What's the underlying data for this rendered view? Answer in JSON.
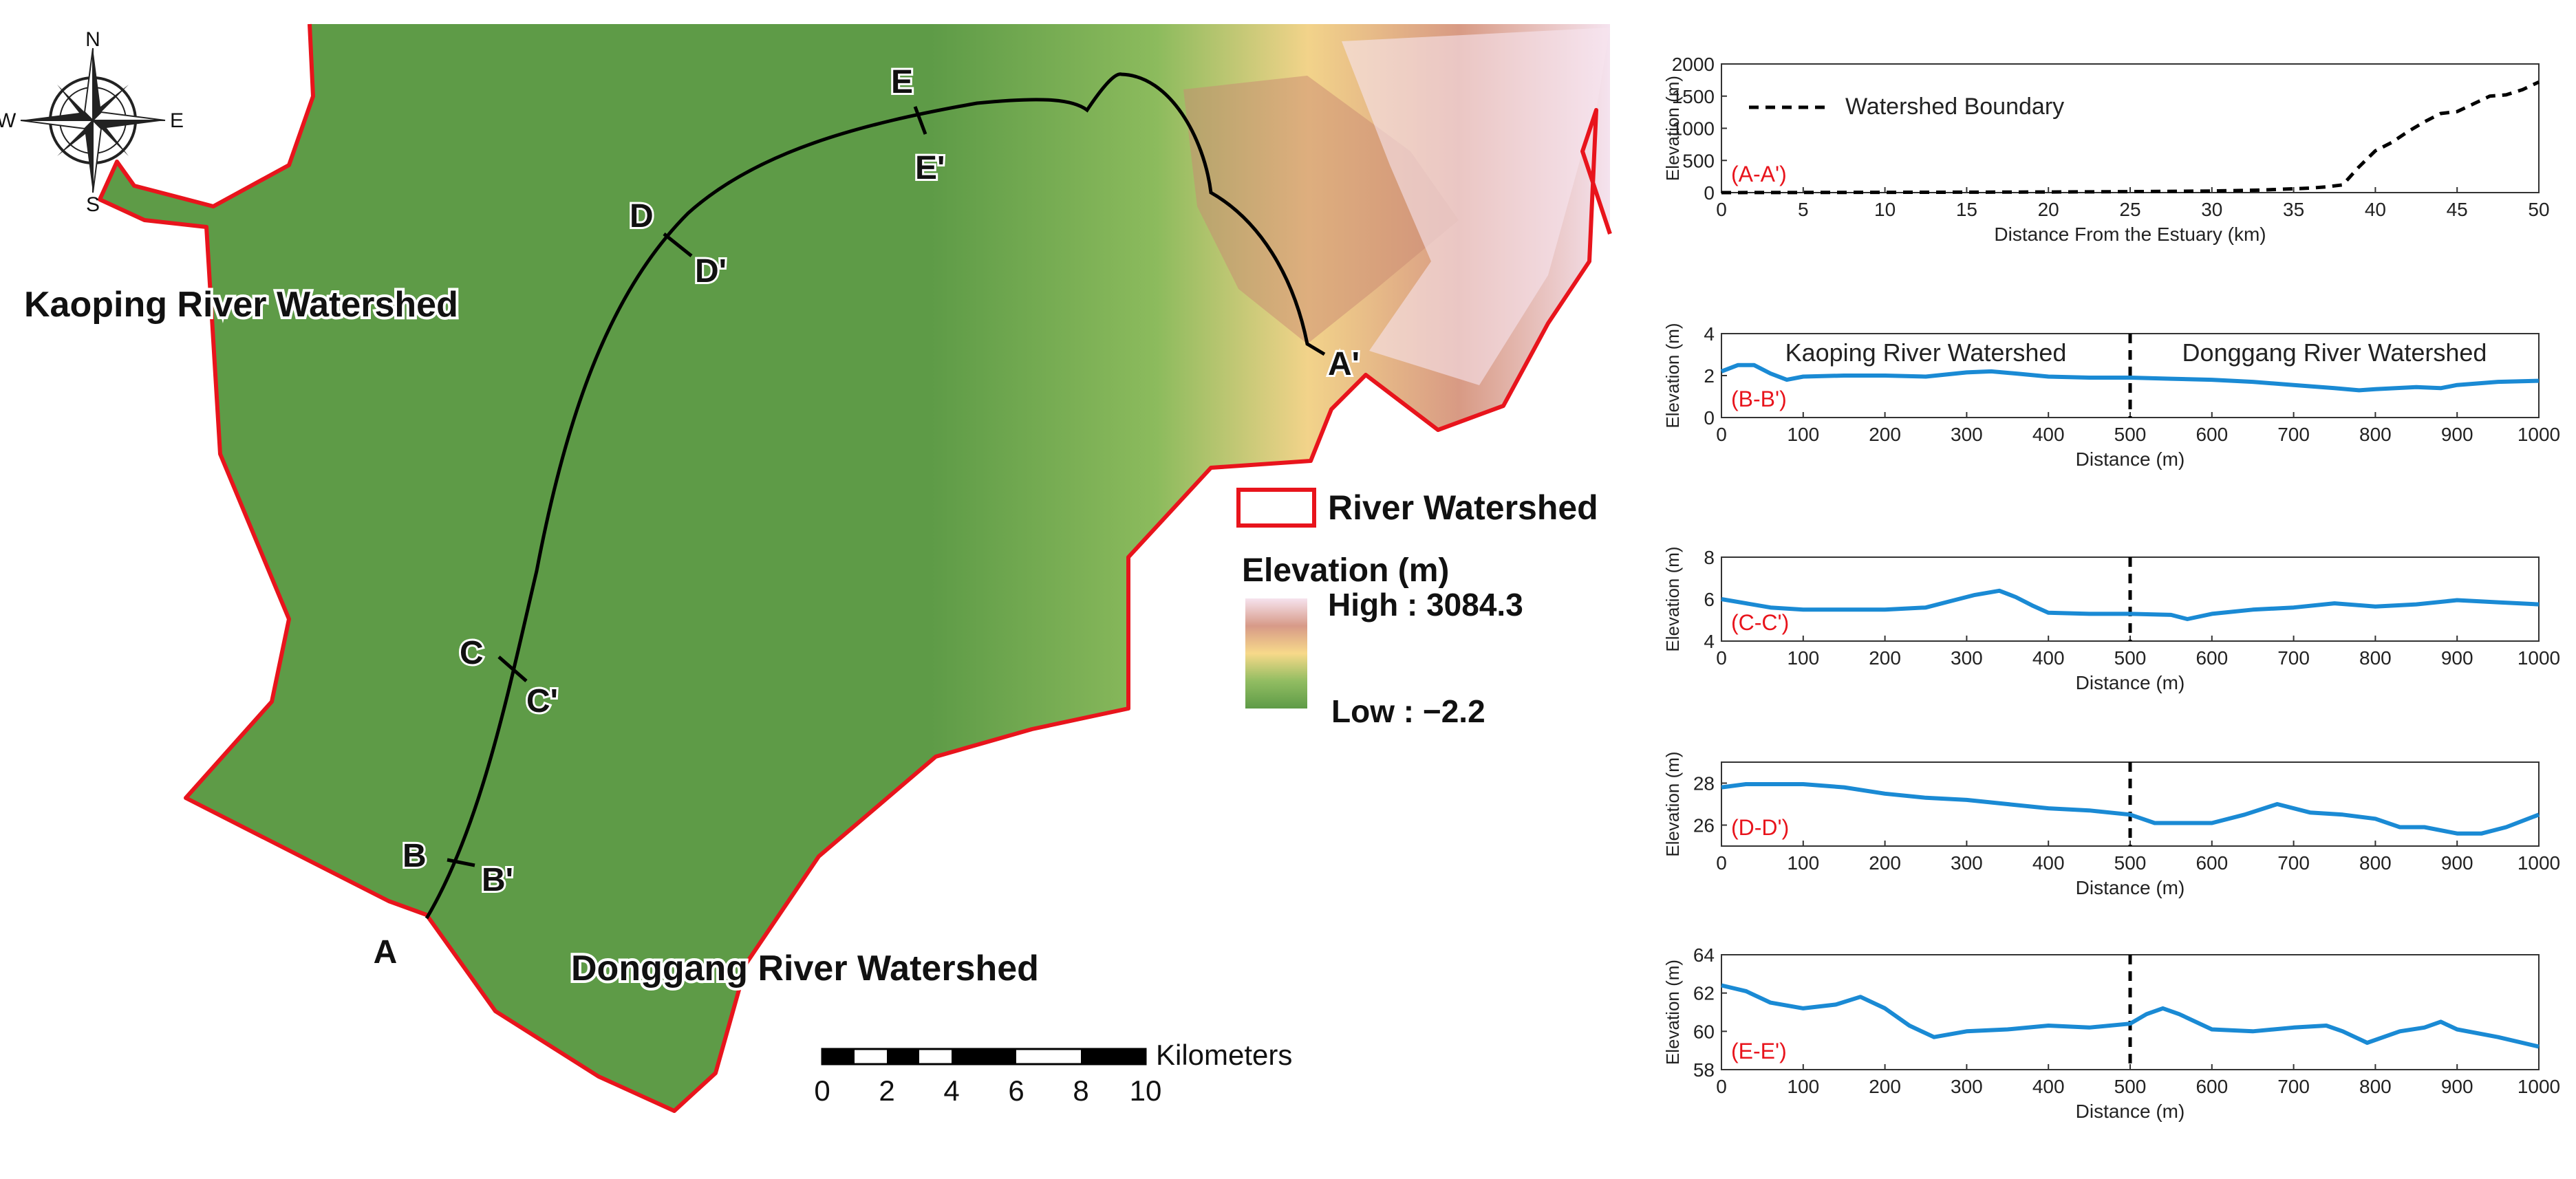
{
  "map": {
    "kaoping_label": "Kaoping River Watershed",
    "donggang_label": "Donggang River Watershed",
    "compass": {
      "n": "N",
      "s": "S",
      "e": "E",
      "w": "W"
    },
    "points": {
      "a": "A",
      "a_prime": "A'",
      "b": "B",
      "b_prime": "B'",
      "c": "C",
      "c_prime": "C'",
      "d": "D",
      "d_prime": "D'",
      "e": "E",
      "e_prime": "E'"
    },
    "legend": {
      "boundary_label": "River Watershed",
      "elevation_title": "Elevation (m)",
      "high_label": "High : 3084.3",
      "low_label": "Low : −2.2",
      "boundary_color": "#e8141c",
      "ramp_colors": [
        "#f6e3ee",
        "#d79a88",
        "#f7d98a",
        "#92bd62",
        "#5e9b47"
      ]
    },
    "scalebar": {
      "ticks": [
        "0",
        "2",
        "4",
        "6",
        "8",
        "10"
      ],
      "unit": "Kilometers"
    }
  },
  "chart_data": [
    {
      "type": "line",
      "panel_label": "(A-A')",
      "xlabel": "Distance From the Estuary (km)",
      "ylabel": "Elevation (m)",
      "xlim": [
        0,
        50
      ],
      "ylim": [
        0,
        2000
      ],
      "xticks": [
        "0",
        "5",
        "10",
        "15",
        "20",
        "25",
        "30",
        "35",
        "40",
        "45",
        "50"
      ],
      "yticks": [
        "0",
        "500",
        "1000",
        "1500",
        "2000"
      ],
      "legend": "Watershed Boundary",
      "series": [
        {
          "name": "Watershed Boundary",
          "style": "dashed",
          "color": "#000000",
          "x": [
            0,
            5,
            10,
            15,
            20,
            25,
            30,
            33,
            36,
            37,
            38,
            39,
            40,
            41,
            42,
            43,
            44,
            45,
            46,
            47,
            48,
            49,
            50
          ],
          "y": [
            0,
            2,
            4,
            6,
            10,
            15,
            25,
            40,
            70,
            90,
            120,
            400,
            650,
            780,
            950,
            1100,
            1230,
            1260,
            1380,
            1500,
            1520,
            1600,
            1720
          ]
        }
      ]
    },
    {
      "type": "line",
      "panel_label": "(B-B')",
      "left_region": "Kaoping River Watershed",
      "right_region": "Donggang River Watershed",
      "xlabel": "Distance (m)",
      "ylabel": "Elevation (m)",
      "xlim": [
        0,
        1000
      ],
      "ylim": [
        0,
        4
      ],
      "xticks": [
        "0",
        "100",
        "200",
        "300",
        "400",
        "500",
        "600",
        "700",
        "800",
        "900",
        "1000"
      ],
      "yticks": [
        "0",
        "2",
        "4"
      ],
      "divider_x": 500,
      "series": [
        {
          "color": "#1a8ad4",
          "x": [
            0,
            20,
            40,
            60,
            80,
            100,
            150,
            200,
            250,
            300,
            330,
            360,
            400,
            450,
            500,
            550,
            600,
            650,
            700,
            750,
            780,
            800,
            850,
            880,
            900,
            950,
            1000
          ],
          "y": [
            2.2,
            2.5,
            2.5,
            2.1,
            1.8,
            1.95,
            2.0,
            2.0,
            1.95,
            2.15,
            2.2,
            2.1,
            1.95,
            1.9,
            1.9,
            1.85,
            1.8,
            1.7,
            1.55,
            1.4,
            1.3,
            1.35,
            1.45,
            1.4,
            1.55,
            1.7,
            1.75
          ]
        }
      ]
    },
    {
      "type": "line",
      "panel_label": "(C-C')",
      "xlabel": "Distance (m)",
      "ylabel": "Elevation (m)",
      "xlim": [
        0,
        1000
      ],
      "ylim": [
        4,
        8
      ],
      "xticks": [
        "0",
        "100",
        "200",
        "300",
        "400",
        "500",
        "600",
        "700",
        "800",
        "900",
        "1000"
      ],
      "yticks": [
        "4",
        "6",
        "8"
      ],
      "divider_x": 500,
      "series": [
        {
          "color": "#1a8ad4",
          "x": [
            0,
            30,
            60,
            100,
            150,
            200,
            250,
            280,
            310,
            340,
            360,
            380,
            400,
            450,
            500,
            550,
            570,
            600,
            650,
            700,
            750,
            800,
            850,
            900,
            950,
            1000
          ],
          "y": [
            6.0,
            5.8,
            5.6,
            5.5,
            5.5,
            5.5,
            5.6,
            5.9,
            6.2,
            6.4,
            6.1,
            5.7,
            5.35,
            5.3,
            5.3,
            5.25,
            5.05,
            5.3,
            5.5,
            5.6,
            5.8,
            5.65,
            5.75,
            5.95,
            5.85,
            5.75
          ]
        }
      ]
    },
    {
      "type": "line",
      "panel_label": "(D-D')",
      "xlabel": "Distance (m)",
      "ylabel": "Elevation (m)",
      "xlim": [
        0,
        1000
      ],
      "ylim": [
        25,
        29
      ],
      "xticks": [
        "0",
        "100",
        "200",
        "300",
        "400",
        "500",
        "600",
        "700",
        "800",
        "900",
        "1000"
      ],
      "yticks": [
        "26",
        "28"
      ],
      "divider_x": 500,
      "series": [
        {
          "color": "#1a8ad4",
          "x": [
            0,
            30,
            100,
            150,
            200,
            250,
            300,
            350,
            400,
            450,
            500,
            530,
            560,
            600,
            640,
            680,
            720,
            760,
            800,
            830,
            860,
            900,
            930,
            960,
            1000
          ],
          "y": [
            27.8,
            27.95,
            27.95,
            27.8,
            27.5,
            27.3,
            27.2,
            27.0,
            26.8,
            26.7,
            26.5,
            26.1,
            26.1,
            26.1,
            26.5,
            27.0,
            26.6,
            26.5,
            26.3,
            25.9,
            25.9,
            25.6,
            25.6,
            25.9,
            26.5
          ]
        }
      ]
    },
    {
      "type": "line",
      "panel_label": "(E-E')",
      "xlabel": "Distance (m)",
      "ylabel": "Elevation (m)",
      "xlim": [
        0,
        1000
      ],
      "ylim": [
        58,
        64
      ],
      "xticks": [
        "0",
        "100",
        "200",
        "300",
        "400",
        "500",
        "600",
        "700",
        "800",
        "900",
        "1000"
      ],
      "yticks": [
        "58",
        "60",
        "62",
        "64"
      ],
      "divider_x": 500,
      "series": [
        {
          "color": "#1a8ad4",
          "x": [
            0,
            30,
            60,
            100,
            140,
            170,
            200,
            230,
            260,
            300,
            350,
            400,
            450,
            500,
            520,
            540,
            560,
            600,
            650,
            700,
            740,
            760,
            790,
            830,
            860,
            880,
            900,
            950,
            1000
          ],
          "y": [
            62.4,
            62.1,
            61.5,
            61.2,
            61.4,
            61.8,
            61.2,
            60.3,
            59.7,
            60.0,
            60.1,
            60.3,
            60.2,
            60.4,
            60.9,
            61.2,
            60.9,
            60.1,
            60.0,
            60.2,
            60.3,
            60.0,
            59.4,
            60.0,
            60.2,
            60.5,
            60.1,
            59.7,
            59.2
          ]
        }
      ]
    }
  ]
}
